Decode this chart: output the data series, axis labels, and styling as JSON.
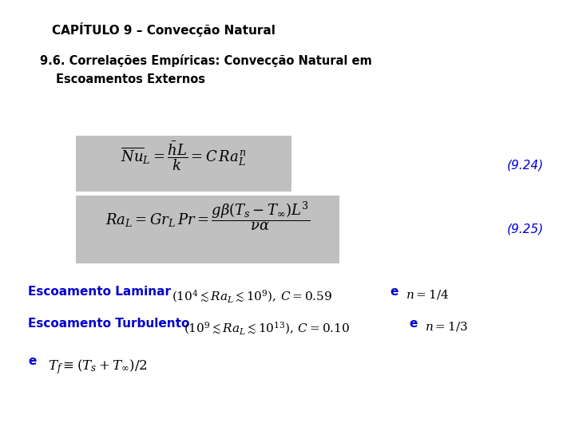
{
  "title": "CAPÍTULO 9 – Convecção Natural",
  "subtitle_line1": "9.6. Correlações Empíricas: Convecção Natural em",
  "subtitle_line2": "    Escoamentos Externos",
  "eq1_label": "(9.24)",
  "eq2_label": "(9.25)",
  "bg_color": "#ffffff",
  "box_color": "#c0c0c0",
  "title_color": "#000000",
  "subtitle_color": "#000000",
  "label_color": "#0000cc",
  "blue_color": "#0000cc",
  "black_color": "#000000"
}
